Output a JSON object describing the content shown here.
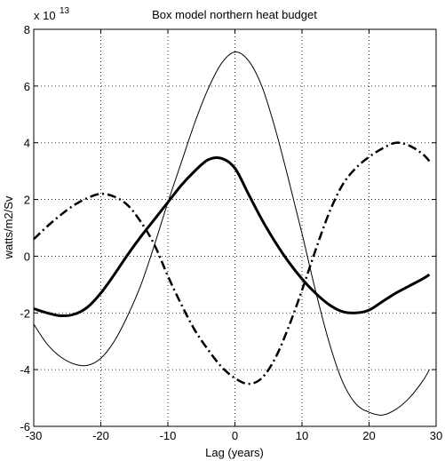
{
  "chart_data": {
    "type": "line",
    "title": "Box model northern heat budget",
    "xlabel": "Lag (years)",
    "ylabel": "watts/m2/Sv",
    "exponent_prefix": "x 10",
    "exponent_power": "13",
    "xlim": [
      -30,
      30
    ],
    "ylim": [
      -6,
      8
    ],
    "xticks": [
      -30,
      -20,
      -10,
      0,
      10,
      20,
      30
    ],
    "yticks": [
      -6,
      -4,
      -2,
      0,
      2,
      4,
      6,
      8
    ],
    "grid": true,
    "series": [
      {
        "style": "thin-solid",
        "x": [
          -30,
          -28,
          -26,
          -24,
          -22,
          -20,
          -18,
          -16,
          -14,
          -12,
          -10,
          -8,
          -6,
          -4,
          -2,
          0,
          2,
          4,
          6,
          8,
          10,
          12,
          14,
          16,
          18,
          20,
          22,
          24,
          26,
          28,
          29
        ],
        "y": [
          -2.4,
          -3.1,
          -3.55,
          -3.8,
          -3.85,
          -3.6,
          -3.0,
          -2.1,
          -1.0,
          0.4,
          1.9,
          3.3,
          4.7,
          5.9,
          6.8,
          7.2,
          6.9,
          6.0,
          4.5,
          2.7,
          0.8,
          -1.2,
          -3.0,
          -4.4,
          -5.2,
          -5.5,
          -5.6,
          -5.4,
          -5.0,
          -4.4,
          -4.0
        ]
      },
      {
        "style": "thick-solid",
        "x": [
          -30,
          -28,
          -26,
          -24,
          -22,
          -20,
          -18,
          -16,
          -14,
          -12,
          -10,
          -8,
          -6,
          -4,
          -2,
          0,
          2,
          4,
          6,
          8,
          10,
          12,
          14,
          16,
          18,
          20,
          22,
          24,
          26,
          28,
          29
        ],
        "y": [
          -1.85,
          -2.0,
          -2.1,
          -2.05,
          -1.8,
          -1.3,
          -0.65,
          0.05,
          0.7,
          1.3,
          1.9,
          2.5,
          3.0,
          3.4,
          3.45,
          3.1,
          2.2,
          1.3,
          0.5,
          -0.2,
          -0.8,
          -1.3,
          -1.7,
          -1.95,
          -2.0,
          -1.9,
          -1.6,
          -1.3,
          -1.05,
          -0.8,
          -0.65
        ]
      },
      {
        "style": "dash-dot",
        "x": [
          -30,
          -28,
          -26,
          -24,
          -22,
          -20,
          -18,
          -16,
          -14,
          -12,
          -10,
          -8,
          -6,
          -4,
          -2,
          0,
          2,
          4,
          6,
          8,
          10,
          12,
          14,
          16,
          18,
          20,
          22,
          24,
          26,
          28,
          29
        ],
        "y": [
          0.6,
          1.05,
          1.45,
          1.8,
          2.05,
          2.2,
          2.1,
          1.8,
          1.2,
          0.4,
          -0.7,
          -1.7,
          -2.6,
          -3.3,
          -3.9,
          -4.3,
          -4.5,
          -4.3,
          -3.6,
          -2.5,
          -1.2,
          0.2,
          1.5,
          2.5,
          3.1,
          3.5,
          3.8,
          4.0,
          3.9,
          3.6,
          3.35
        ]
      }
    ]
  }
}
